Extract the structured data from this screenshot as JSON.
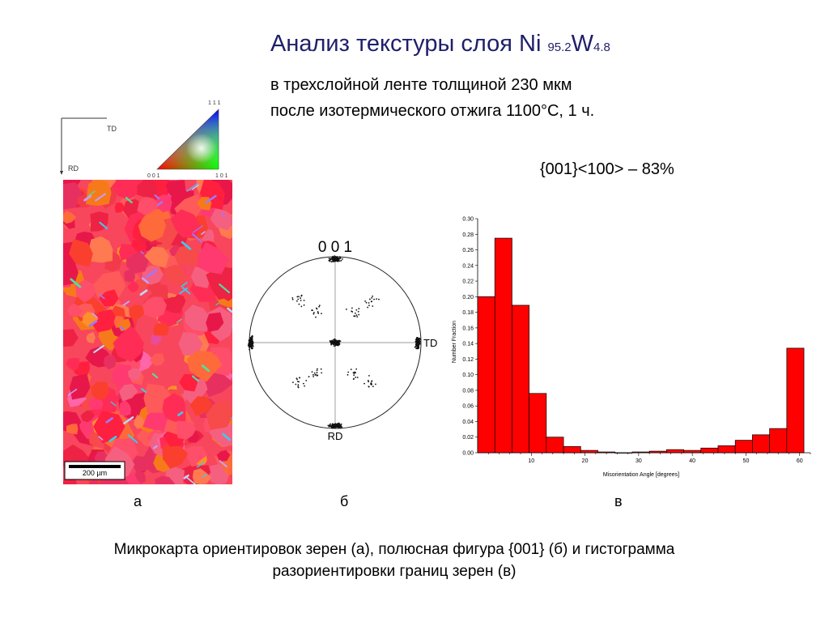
{
  "header": {
    "title_main": "Анализ текстуры слоя  Ni ",
    "title_ni_sub": "95.2",
    "title_w": "W",
    "title_w_sub": "4.8",
    "line1": "в  трехслойной ленте толщиной 230 мкм",
    "line2": "после изотермического отжига 1100°С, 1 ч.",
    "texture_fraction": "{001}<100> – 83%"
  },
  "ebsd_map": {
    "td_label": "TD",
    "rd_label": "RD",
    "ipf_top": "1 1 1",
    "ipf_left": "0 0 1",
    "ipf_right": "1 0 1",
    "scale_bar": "200 µm"
  },
  "pole_figure": {
    "title": "0 0 1",
    "td_label": "TD",
    "rd_label": "RD"
  },
  "panel_labels": {
    "a": "а",
    "b": "б",
    "v": "в"
  },
  "caption": {
    "line1": "Микрокарта ориентировок зерен (а), полюсная фигура {001} (б) и гистограмма",
    "line2": "разориентировки границ зерен (в)"
  },
  "chart_data": {
    "type": "bar",
    "xlabel": "Misorientation Angle [degrees]",
    "ylabel": "Number Fraction",
    "xlim": [
      0,
      62
    ],
    "ylim": [
      0,
      0.3
    ],
    "xticks": [
      10,
      20,
      30,
      40,
      50,
      60
    ],
    "yticks": [
      "0.00",
      "0.02",
      "0.04",
      "0.06",
      "0.08",
      "0.10",
      "0.12",
      "0.14",
      "0.16",
      "0.18",
      "0.20",
      "0.22",
      "0.24",
      "0.26",
      "0.28",
      "0.30"
    ],
    "bin_width": 3.2,
    "bin_starts": [
      0.0,
      3.2,
      6.4,
      9.6,
      12.8,
      16.0,
      19.2,
      22.4,
      25.6,
      28.8,
      32.0,
      35.2,
      38.4,
      41.6,
      44.8,
      48.0,
      51.2,
      54.4,
      57.6
    ],
    "values": [
      0.2,
      0.275,
      0.189,
      0.076,
      0.02,
      0.008,
      0.003,
      0.001,
      0.0,
      0.001,
      0.002,
      0.004,
      0.003,
      0.006,
      0.009,
      0.016,
      0.023,
      0.031,
      0.134
    ],
    "bar_color": "#ff0000",
    "grid": false
  },
  "colors": {
    "title": "#1f1f6b",
    "bars": "#ff0000"
  }
}
